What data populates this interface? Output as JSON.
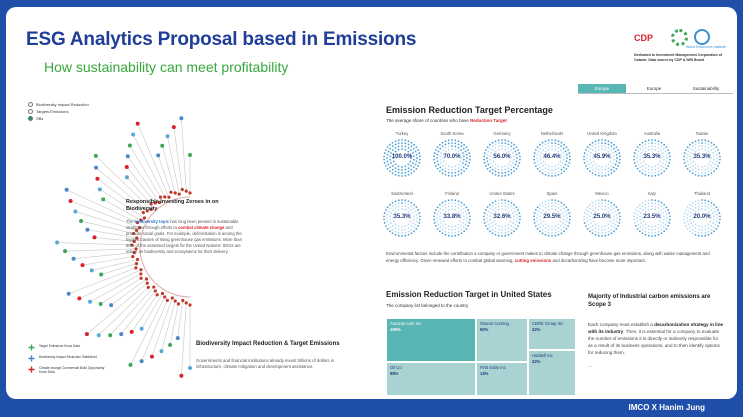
{
  "header": {
    "title": "ESG Analytics Proposal based in Emissions",
    "subtitle": "How sustainability can meet profitability",
    "logo_cdp": "CDP",
    "logo_world_text": "World Resources Institute",
    "credit": "Dedicated to Investment Management Corporation of Ontario. Data source by CDP & WRI Brand"
  },
  "tabs": [
    {
      "label": "Europe",
      "active": true
    },
    {
      "label": "Europe",
      "active": false
    },
    {
      "label": "Sustainability",
      "active": false
    }
  ],
  "left_legend": [
    {
      "label": "Biodiversity Impact Reduction"
    },
    {
      "label": "Targets Emissions"
    },
    {
      "label": "SBs"
    }
  ],
  "arc": {
    "heading": "Responsible Investing Zeroes in on Biodiversity",
    "body_pre": "The ",
    "body_hl1": "biodiversity topic",
    "body_mid1": " has long been present in sustainable strategies through efforts to ",
    "body_hl2": "combat climate change",
    "body_post": " and promote social goals. For example, deforestation is among the biggest causes of rising greenhouse gas emissions. More than 80% of the assessed targets for the United Nations' SDGs are reliant on biodiversity and ecosystems for their delivery."
  },
  "biodiversity": {
    "title": "Biodiversity Impact Reduction & Target Emissions",
    "body": "Governments and financial institutions already invest trillions of dollars in infrastructure, climate mitigation and development assistance."
  },
  "bottom_legend": [
    {
      "label": "Target Emissions Know Data"
    },
    {
      "label": "Biodiversity Impact Reduction Stablished"
    },
    {
      "label": "Climate change Commercial Build Opportunity Know Data"
    }
  ],
  "ert": {
    "title": "Emission Reduction Target Percentage",
    "sub_pre": "The average share of countries who have ",
    "sub_hl": "Reduction Target",
    "countries": [
      {
        "name": "Turkey",
        "pct": "100.0%"
      },
      {
        "name": "South Korea",
        "pct": "70.0%"
      },
      {
        "name": "Germany",
        "pct": "56.0%"
      },
      {
        "name": "Netherlands",
        "pct": "46.4%"
      },
      {
        "name": "United Kingdom",
        "pct": "45.9%"
      },
      {
        "name": "Australia",
        "pct": "35.3%"
      },
      {
        "name": "Taiwan",
        "pct": "35.3%"
      },
      {
        "name": "Switzerland",
        "pct": "35.3%"
      },
      {
        "name": "Finland",
        "pct": "33.8%"
      },
      {
        "name": "United States",
        "pct": "32.6%"
      },
      {
        "name": "Spain",
        "pct": "29.5%"
      },
      {
        "name": "Mexico",
        "pct": "25.0%"
      },
      {
        "name": "Italy",
        "pct": "23.5%"
      },
      {
        "name": "Thailand",
        "pct": "20.0%"
      }
    ],
    "values": [
      100.0,
      70.0,
      56.0,
      46.4,
      45.9,
      35.3,
      35.3,
      35.3,
      33.8,
      32.6,
      29.5,
      25.0,
      23.5,
      20.0
    ]
  },
  "env": {
    "pre": "Environmental factors include the contribution a company or government makes to climate change through greenhouse gas emissions, along with waste management and energy efficiency. Given renewed efforts to combat global warming, ",
    "hl": "cutting emissions",
    "post": " and decarbonizing have become more important."
  },
  "us": {
    "title": "Emission Reduction Target in United States",
    "sub": "The company list belonged to the country",
    "tiles": [
      {
        "name": "Amazon.com Inc",
        "value": "100%"
      },
      {
        "name": "Oil Co",
        "value": "98%"
      },
      {
        "name": "Owens Corning",
        "value": "50%"
      },
      {
        "name": "First Solar Inc",
        "value": "13%"
      },
      {
        "name": "CBRE Group Inc",
        "value": "22%"
      },
      {
        "name": "Hubbell Inc",
        "value": "22%"
      }
    ]
  },
  "majority": {
    "title": "Majority of Industrial carbon emissions are Scope 3",
    "p1_pre": "Each company must establish a ",
    "p1_b": "decarbonization strategy in line with its industry",
    "p1_post": ". Then, it is essential for a company to evaluate the number of emissions it is directly or indirectly responsible for as a result of its business operations, and to then identify options for reducing them.",
    "p2": "..."
  },
  "footer": {
    "text": "IMCO X Hanim Jung"
  },
  "colors": {
    "frame": "#1f4fa8",
    "title": "#1f3d99",
    "subtitle": "#37a73c",
    "accent_teal": "#58b7b5",
    "highlight_red": "#d8232a",
    "dot_blue": "#5aa7d6"
  }
}
